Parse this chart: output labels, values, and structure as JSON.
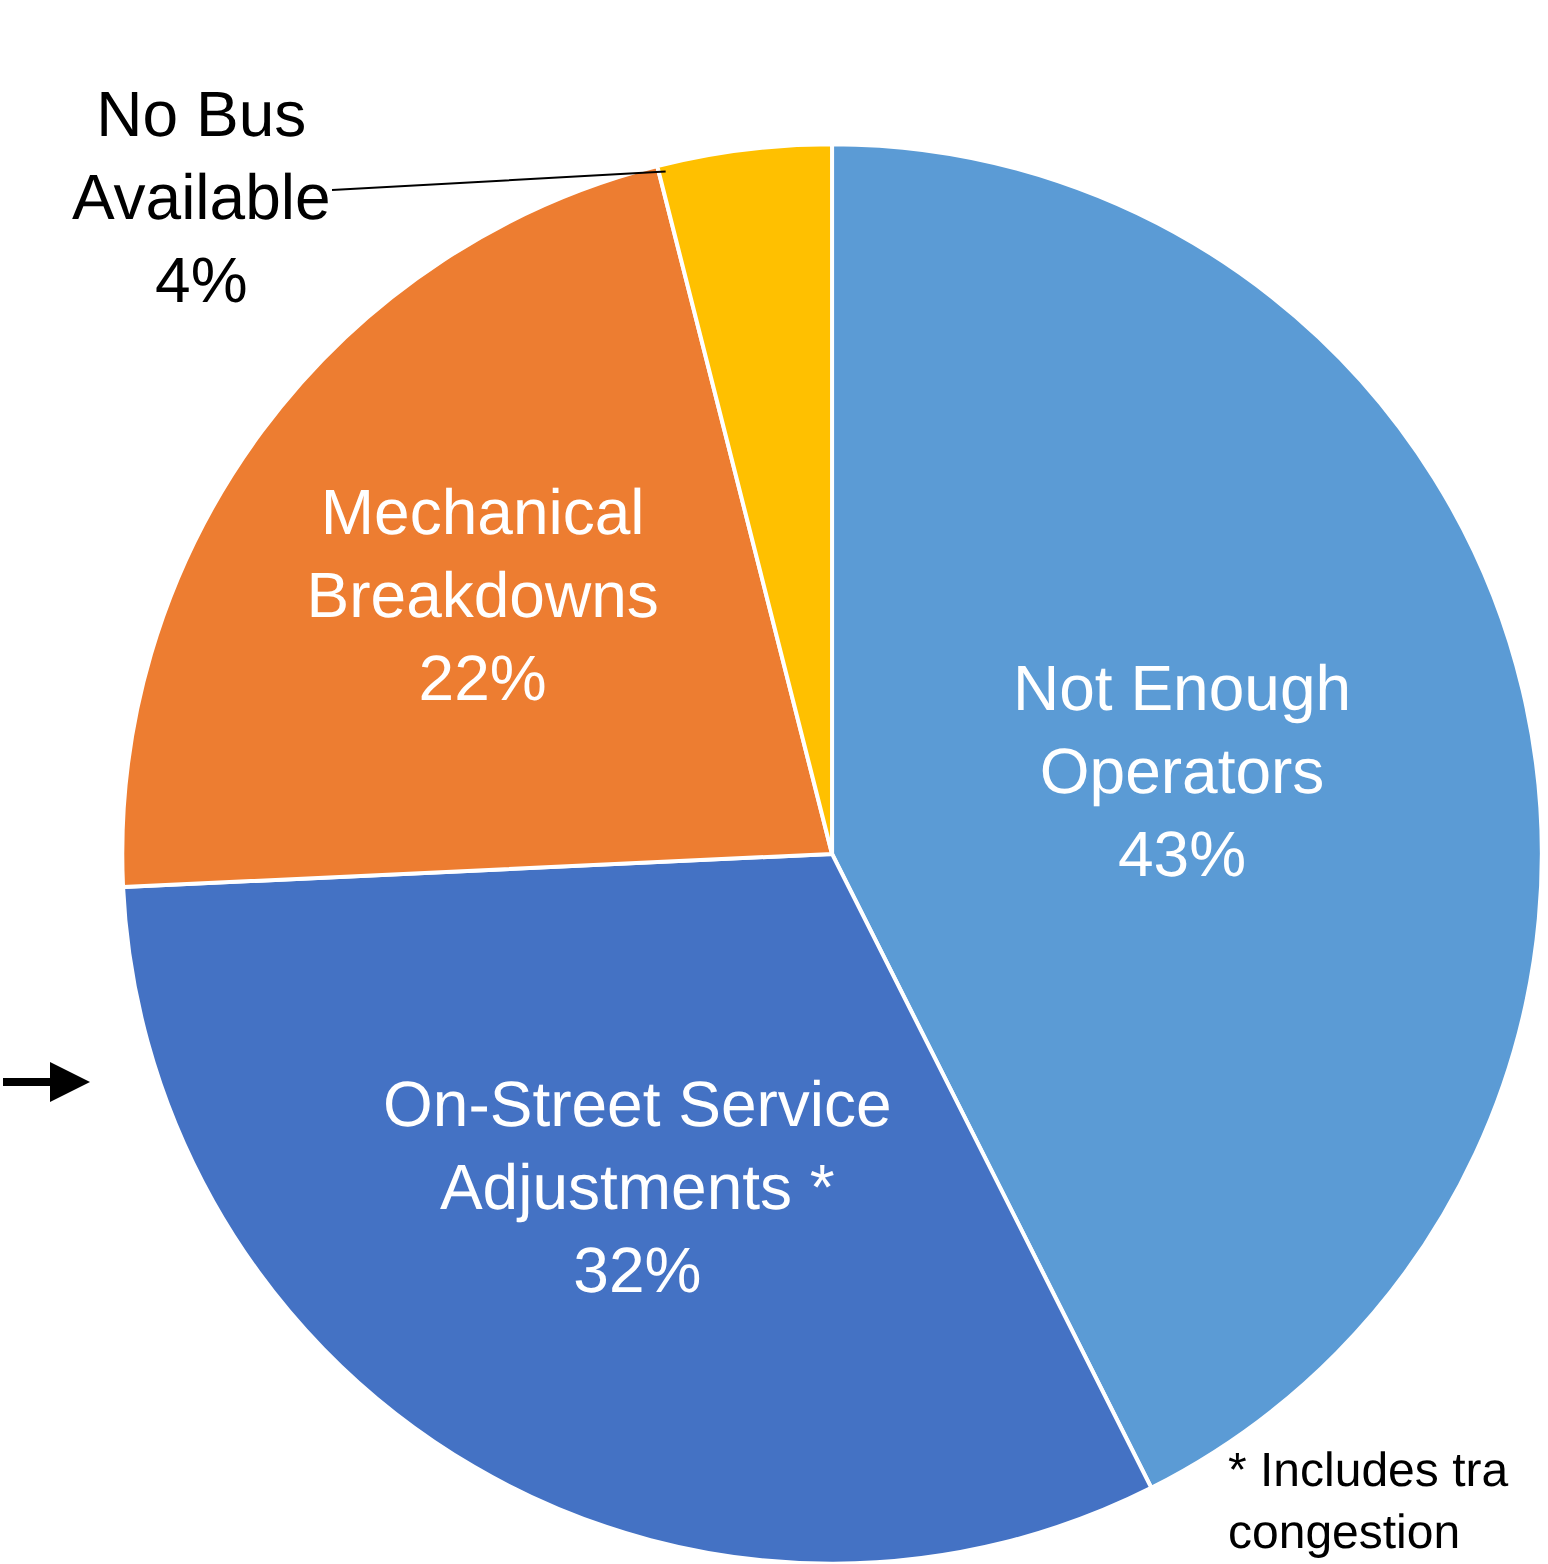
{
  "chart_data": {
    "type": "pie",
    "categories": [
      "Not Enough\nOperators",
      "On-Street Service\nAdjustments *",
      "Mechanical\nBreakdowns",
      "No Bus\nAvailable"
    ],
    "values": [
      43,
      32,
      22,
      4
    ],
    "value_labels": [
      "43%",
      "32%",
      "22%",
      "4%"
    ],
    "colors": [
      "#5b9bd5",
      "#4472c4",
      "#ed7d31",
      "#ffc000"
    ],
    "annotations": [
      "* Includes tra\ncongestion"
    ]
  }
}
